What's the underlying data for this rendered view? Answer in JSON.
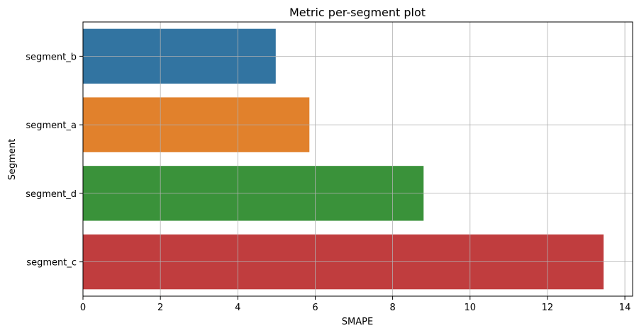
{
  "chart_data": {
    "type": "bar",
    "orientation": "horizontal",
    "title": "Metric per-segment plot",
    "xlabel": "SMAPE",
    "ylabel": "Segment",
    "categories": [
      "segment_b",
      "segment_a",
      "segment_d",
      "segment_c"
    ],
    "values": [
      4.98,
      5.85,
      8.8,
      13.45
    ],
    "colors": [
      "#3274a1",
      "#e1812c",
      "#3a923a",
      "#c03d3e"
    ],
    "xlim": [
      0,
      14.2
    ],
    "xticks": [
      0,
      2,
      4,
      6,
      8,
      10,
      12,
      14
    ],
    "grid": true
  }
}
